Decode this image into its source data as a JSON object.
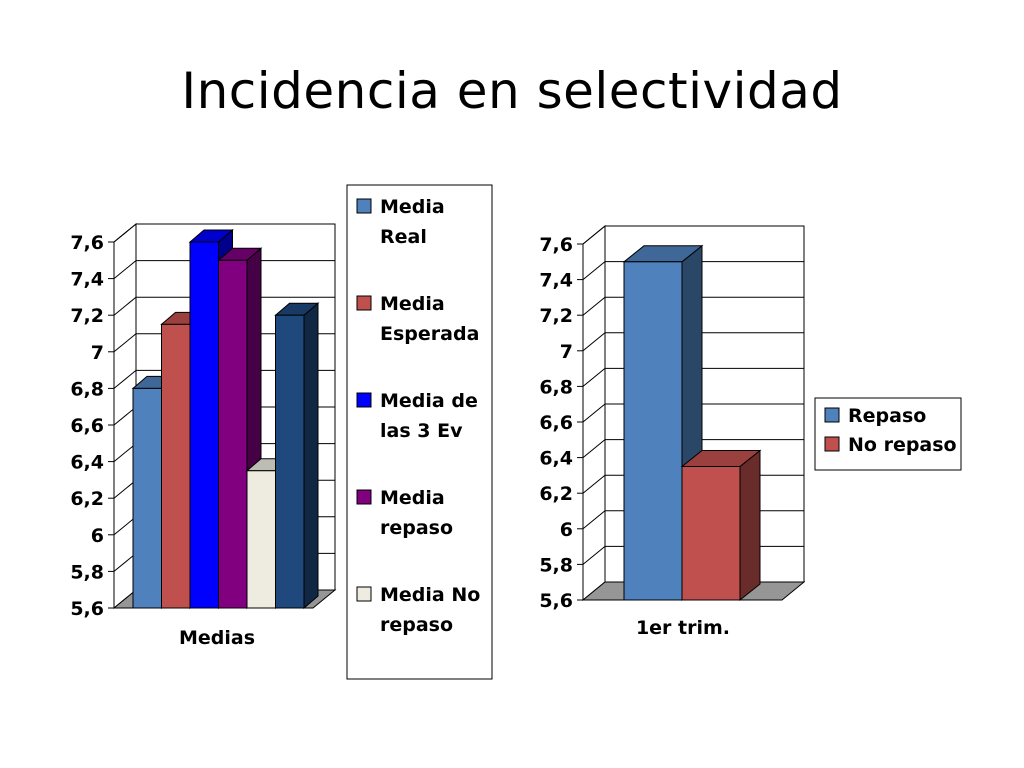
{
  "slide": {
    "title": "Incidencia en selectividad"
  },
  "chart_data": [
    {
      "type": "bar",
      "variant": "3d-clustered-column",
      "categories": [
        "Medias"
      ],
      "ylim": [
        5.6,
        7.6
      ],
      "yticks": [
        "5,6",
        "5,8",
        "6",
        "6,2",
        "6,4",
        "6,6",
        "6,8",
        "7",
        "7,2",
        "7,4",
        "7,6"
      ],
      "grid": true,
      "legend": "right",
      "series": [
        {
          "name": "Media Real",
          "values": [
            6.8
          ],
          "color": "#4F81BD",
          "legend_lines": [
            "Media",
            "Real"
          ]
        },
        {
          "name": "Media Esperada",
          "values": [
            7.15
          ],
          "color": "#C0504D",
          "legend_lines": [
            "Media",
            "Esperada"
          ]
        },
        {
          "name": "Media de las 3 Ev",
          "values": [
            7.6
          ],
          "color": "#0000FF",
          "legend_lines": [
            "Media de",
            "las 3 Ev"
          ]
        },
        {
          "name": "Media repaso",
          "values": [
            7.5
          ],
          "color": "#800080",
          "legend_lines": [
            "Media",
            "repaso"
          ]
        },
        {
          "name": "Media No repaso",
          "values": [
            6.35
          ],
          "color": "#EEECE1",
          "legend_lines": [
            "Media No",
            "repaso"
          ]
        },
        {
          "name": "",
          "values": [
            7.2
          ],
          "color": "#1F497D",
          "legend_lines": []
        }
      ]
    },
    {
      "type": "bar",
      "variant": "3d-clustered-column",
      "categories": [
        "1er trim."
      ],
      "ylim": [
        5.6,
        7.6
      ],
      "yticks": [
        "5,6",
        "5,8",
        "6",
        "6,2",
        "6,4",
        "6,6",
        "6,8",
        "7",
        "7,2",
        "7,4",
        "7,6"
      ],
      "grid": true,
      "legend": "right",
      "series": [
        {
          "name": "Repaso",
          "values": [
            7.5
          ],
          "color": "#4F81BD",
          "legend_lines": [
            "Repaso"
          ]
        },
        {
          "name": "No repaso",
          "values": [
            6.35
          ],
          "color": "#C0504D",
          "legend_lines": [
            "No repaso"
          ]
        }
      ]
    }
  ]
}
